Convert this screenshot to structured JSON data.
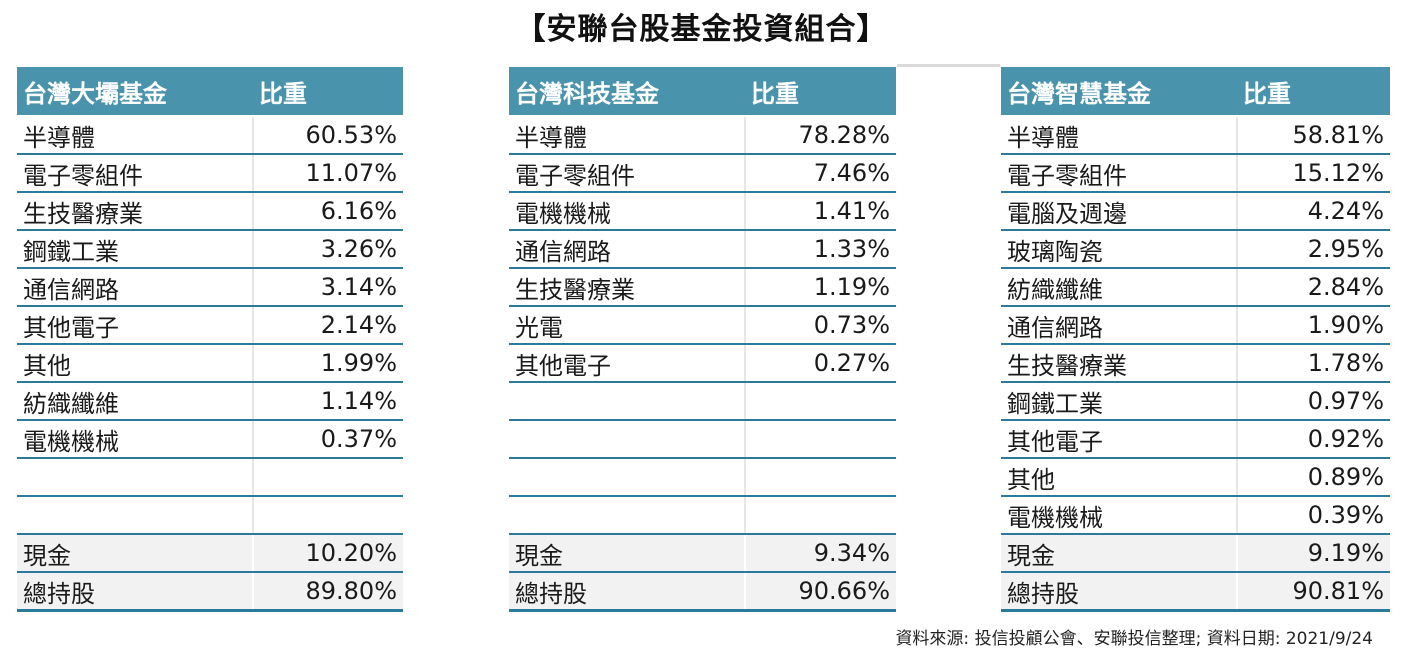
{
  "title": "【安聯台股基金投資組合】",
  "funds": [
    {
      "name": "台灣大壩基金",
      "weight_header": "比重",
      "rows": [
        {
          "sector": "半導體",
          "pct": "60.53%"
        },
        {
          "sector": "電子零組件",
          "pct": "11.07%"
        },
        {
          "sector": "生技醫療業",
          "pct": "6.16%"
        },
        {
          "sector": "鋼鐵工業",
          "pct": "3.26%"
        },
        {
          "sector": "通信網路",
          "pct": "3.14%"
        },
        {
          "sector": "其他電子",
          "pct": "2.14%"
        },
        {
          "sector": "其他",
          "pct": "1.99%"
        },
        {
          "sector": "紡織纖維",
          "pct": "1.14%"
        },
        {
          "sector": "電機機械",
          "pct": "0.37%"
        },
        {
          "sector": "",
          "pct": ""
        },
        {
          "sector": "",
          "pct": ""
        }
      ],
      "cash": {
        "label": "現金",
        "pct": "10.20%"
      },
      "stock": {
        "label": "總持股",
        "pct": "89.80%"
      }
    },
    {
      "name": "台灣科技基金",
      "weight_header": "比重",
      "rows": [
        {
          "sector": "半導體",
          "pct": "78.28%"
        },
        {
          "sector": "電子零組件",
          "pct": "7.46%"
        },
        {
          "sector": "電機機械",
          "pct": "1.41%"
        },
        {
          "sector": "通信網路",
          "pct": "1.33%"
        },
        {
          "sector": "生技醫療業",
          "pct": "1.19%"
        },
        {
          "sector": "光電",
          "pct": "0.73%"
        },
        {
          "sector": "其他電子",
          "pct": "0.27%"
        },
        {
          "sector": "",
          "pct": ""
        },
        {
          "sector": "",
          "pct": ""
        },
        {
          "sector": "",
          "pct": ""
        },
        {
          "sector": "",
          "pct": ""
        }
      ],
      "cash": {
        "label": "現金",
        "pct": "9.34%"
      },
      "stock": {
        "label": "總持股",
        "pct": "90.66%"
      }
    },
    {
      "name": "台灣智慧基金",
      "weight_header": "比重",
      "rows": [
        {
          "sector": "半導體",
          "pct": "58.81%"
        },
        {
          "sector": "電子零組件",
          "pct": "15.12%"
        },
        {
          "sector": "電腦及週邊",
          "pct": "4.24%"
        },
        {
          "sector": "玻璃陶瓷",
          "pct": "2.95%"
        },
        {
          "sector": "紡織纖維",
          "pct": "2.84%"
        },
        {
          "sector": "通信網路",
          "pct": "1.90%"
        },
        {
          "sector": "生技醫療業",
          "pct": "1.78%"
        },
        {
          "sector": "鋼鐵工業",
          "pct": "0.97%"
        },
        {
          "sector": "其他電子",
          "pct": "0.92%"
        },
        {
          "sector": "其他",
          "pct": "0.89%"
        },
        {
          "sector": "電機機械",
          "pct": "0.39%"
        }
      ],
      "cash": {
        "label": "現金",
        "pct": "9.19%"
      },
      "stock": {
        "label": "總持股",
        "pct": "90.81%"
      }
    }
  ],
  "footnote": "資料來源: 投信投顧公會、安聯投信整理; 資料日期:  2021/9/24",
  "colors": {
    "header_bg": "#4a93ad",
    "row_border": "#2a7a9c",
    "summary_bg": "#f2f2f2"
  }
}
